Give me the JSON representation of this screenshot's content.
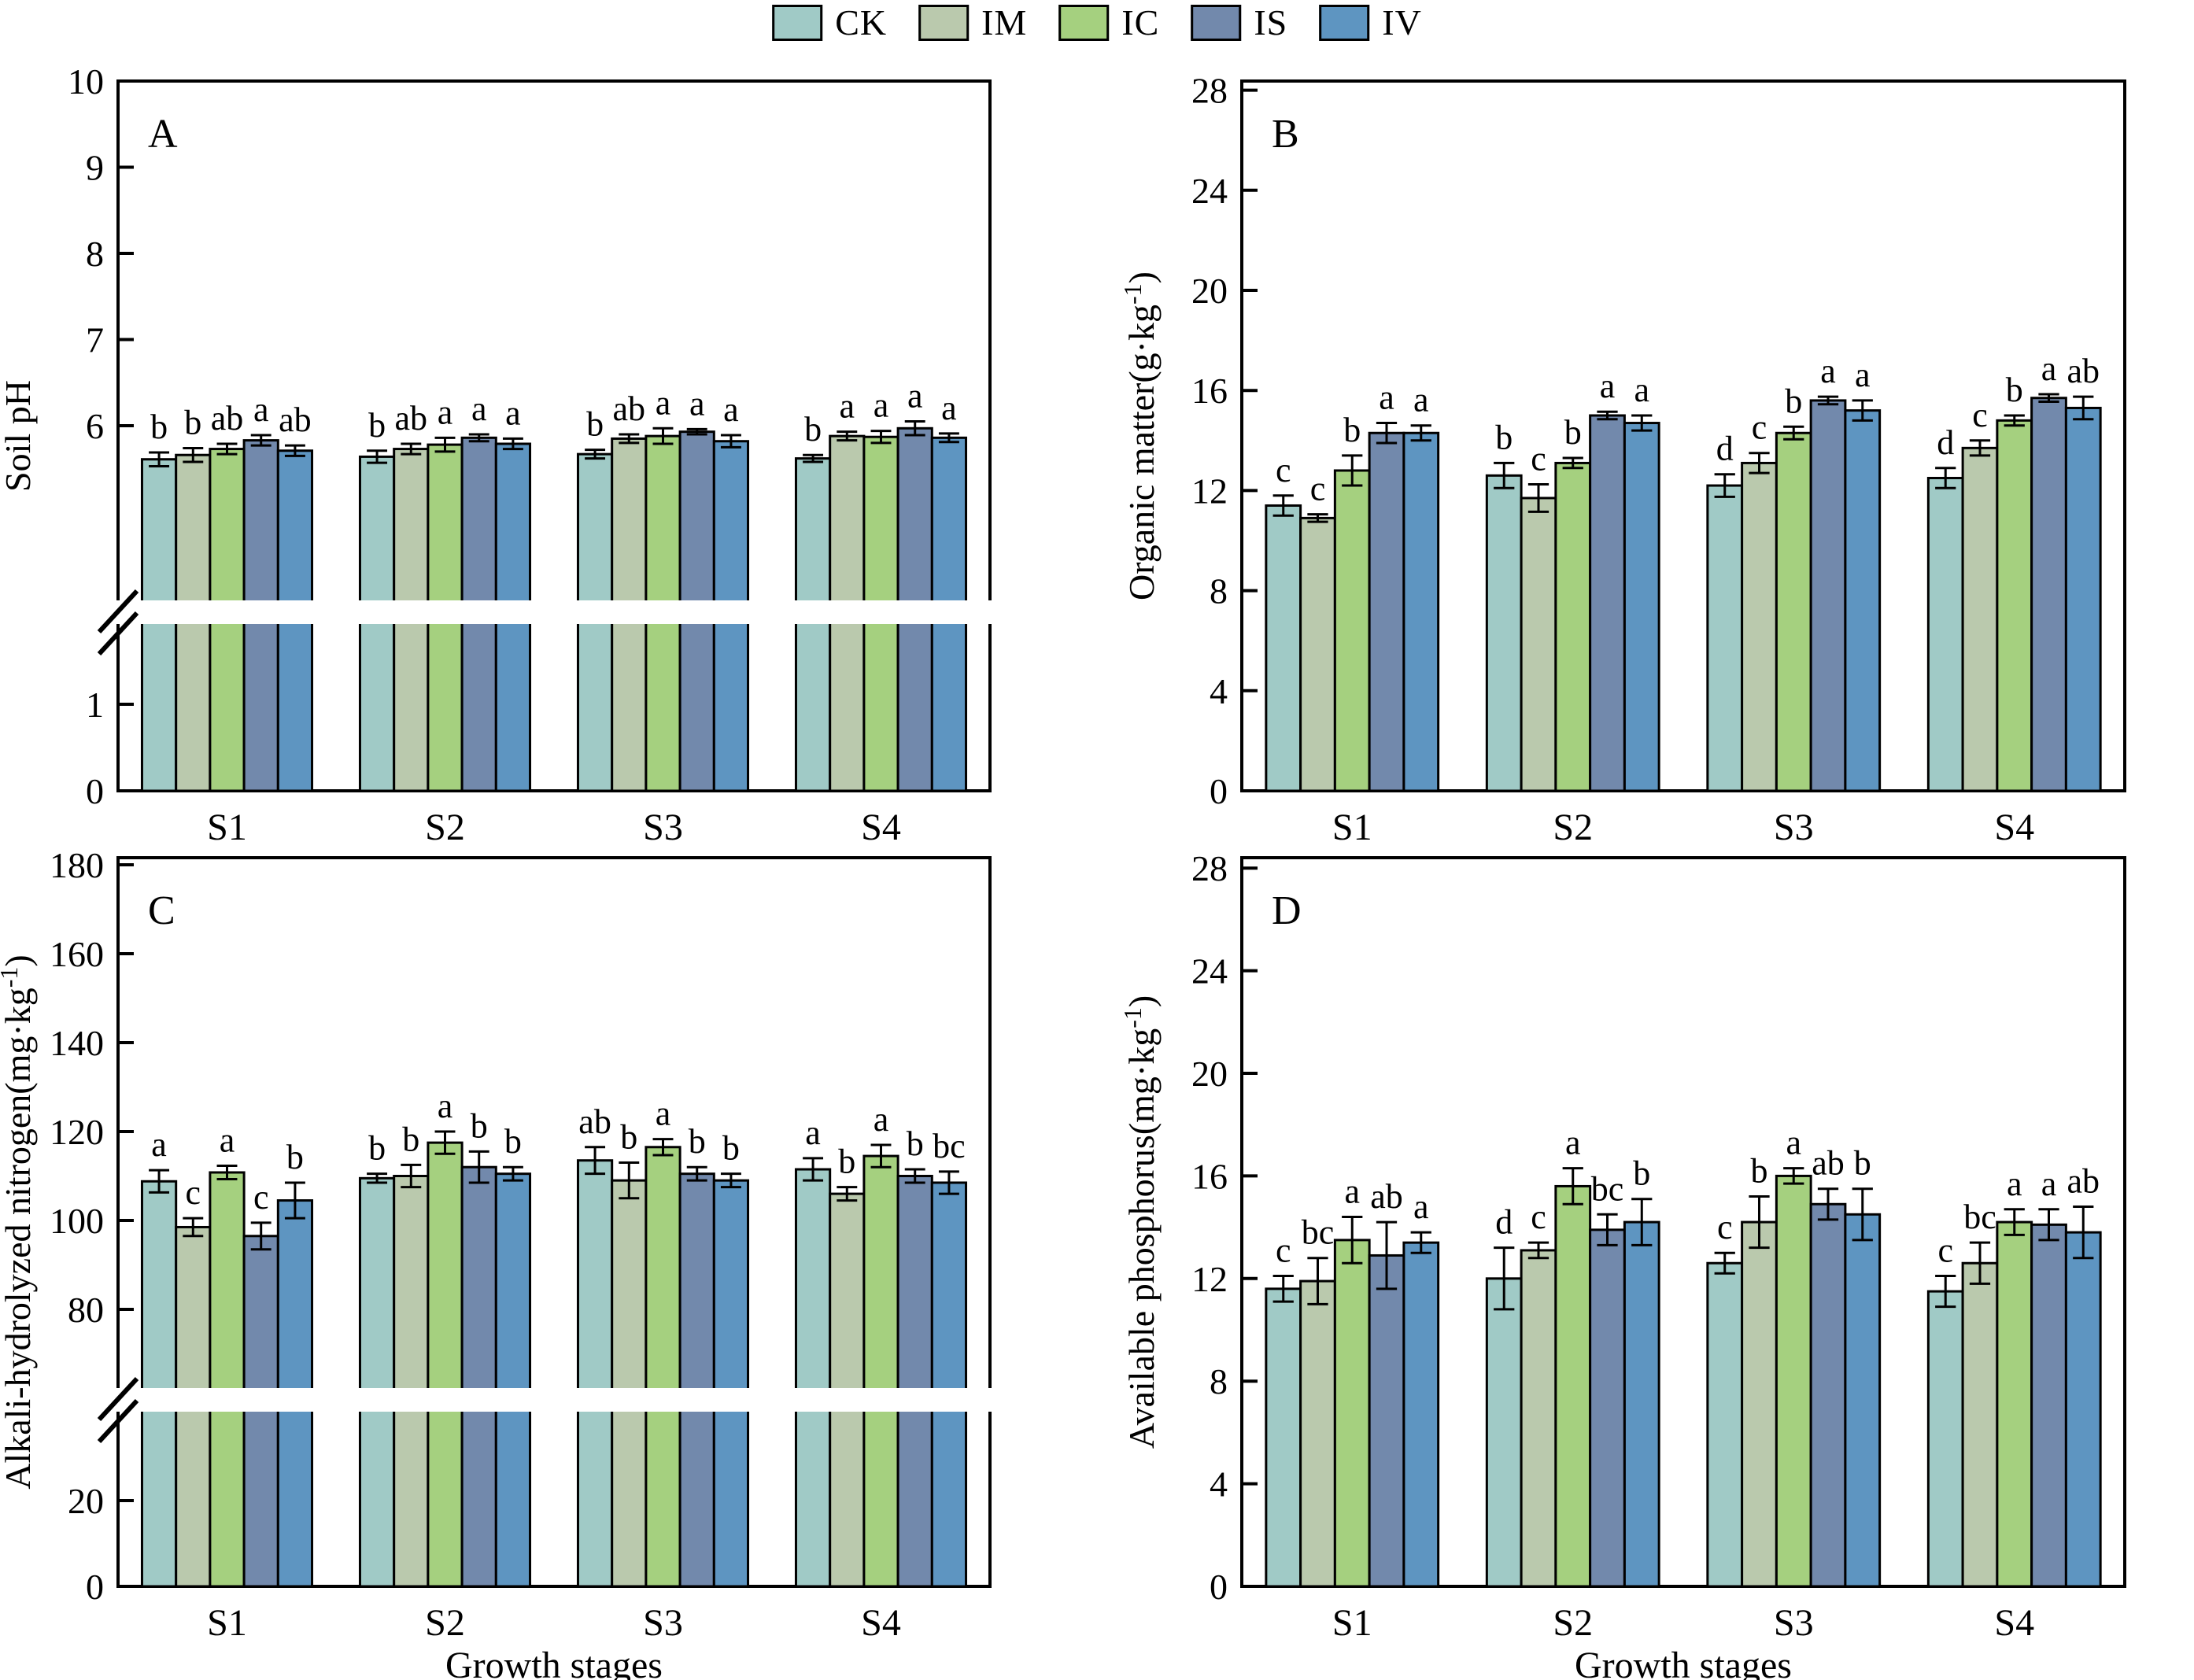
{
  "legend": {
    "items": [
      {
        "label": "CK",
        "color": "#a0cac6"
      },
      {
        "label": "IM",
        "color": "#bac9ad"
      },
      {
        "label": "IC",
        "color": "#a5d07f"
      },
      {
        "label": "IS",
        "color": "#7289ac"
      },
      {
        "label": "IV",
        "color": "#5e95c1"
      }
    ]
  },
  "x_axis": {
    "categories": [
      "S1",
      "S2",
      "S3",
      "S4"
    ],
    "label": "Growth stages"
  },
  "chart_data": [
    {
      "type": "bar",
      "panel": "A",
      "ylabel": "Soil pH",
      "ylim": [
        0,
        10
      ],
      "axis_break": true,
      "upper_ticks": [
        6,
        7,
        8,
        9,
        10
      ],
      "lower_ticks": [
        0,
        1
      ],
      "categories": [
        "S1",
        "S2",
        "S3",
        "S4"
      ],
      "series": [
        {
          "name": "CK",
          "values": [
            5.61,
            5.64,
            5.67,
            5.62
          ],
          "errors": [
            0.08,
            0.07,
            0.05,
            0.04
          ],
          "letters": [
            "b",
            "b",
            "b",
            "b"
          ]
        },
        {
          "name": "IM",
          "values": [
            5.66,
            5.73,
            5.85,
            5.88
          ],
          "errors": [
            0.08,
            0.06,
            0.05,
            0.05
          ],
          "letters": [
            "b",
            "ab",
            "ab",
            "a"
          ]
        },
        {
          "name": "IC",
          "values": [
            5.73,
            5.78,
            5.88,
            5.87
          ],
          "errors": [
            0.06,
            0.08,
            0.09,
            0.07
          ],
          "letters": [
            "ab",
            "a",
            "a",
            "a"
          ]
        },
        {
          "name": "IS",
          "values": [
            5.83,
            5.86,
            5.93,
            5.97
          ],
          "errors": [
            0.06,
            0.04,
            0.03,
            0.08
          ],
          "letters": [
            "a",
            "a",
            "a",
            "a"
          ]
        },
        {
          "name": "IV",
          "values": [
            5.71,
            5.79,
            5.82,
            5.86
          ],
          "errors": [
            0.06,
            0.06,
            0.07,
            0.05
          ],
          "letters": [
            "ab",
            "a",
            "a",
            "a"
          ]
        }
      ]
    },
    {
      "type": "bar",
      "panel": "B",
      "ylabel": "Organic matter(g·kg⁻¹)",
      "ylim": [
        0,
        28
      ],
      "axis_break": false,
      "yticks": [
        0,
        4,
        8,
        12,
        16,
        20,
        24,
        28
      ],
      "categories": [
        "S1",
        "S2",
        "S3",
        "S4"
      ],
      "series": [
        {
          "name": "CK",
          "values": [
            11.4,
            12.6,
            12.2,
            12.5
          ],
          "errors": [
            0.4,
            0.5,
            0.45,
            0.4
          ],
          "letters": [
            "c",
            "b",
            "d",
            "d"
          ]
        },
        {
          "name": "IM",
          "values": [
            10.9,
            11.7,
            13.1,
            13.7
          ],
          "errors": [
            0.15,
            0.55,
            0.4,
            0.3
          ],
          "letters": [
            "c",
            "c",
            "c",
            "c"
          ]
        },
        {
          "name": "IC",
          "values": [
            12.8,
            13.1,
            14.3,
            14.8
          ],
          "errors": [
            0.6,
            0.2,
            0.25,
            0.2
          ],
          "letters": [
            "b",
            "b",
            "b",
            "b"
          ]
        },
        {
          "name": "IS",
          "values": [
            14.3,
            15.0,
            15.6,
            15.7
          ],
          "errors": [
            0.4,
            0.15,
            0.15,
            0.15
          ],
          "letters": [
            "a",
            "a",
            "a",
            "a"
          ]
        },
        {
          "name": "IV",
          "values": [
            14.3,
            14.7,
            15.2,
            15.3
          ],
          "errors": [
            0.3,
            0.3,
            0.4,
            0.45
          ],
          "letters": [
            "a",
            "a",
            "a",
            "ab"
          ]
        }
      ]
    },
    {
      "type": "bar",
      "panel": "C",
      "ylabel": "Alkali-hydrolyzed nitrogen(mg·kg⁻¹)",
      "ylim": [
        0,
        180
      ],
      "axis_break": true,
      "upper_ticks": [
        80,
        100,
        120,
        140,
        160,
        180
      ],
      "lower_ticks": [
        0,
        20
      ],
      "categories": [
        "S1",
        "S2",
        "S3",
        "S4"
      ],
      "series": [
        {
          "name": "CK",
          "values": [
            108.8,
            109.5,
            113.5,
            111.5
          ],
          "errors": [
            2.5,
            1.0,
            3.0,
            2.5
          ],
          "letters": [
            "a",
            "b",
            "ab",
            "a"
          ]
        },
        {
          "name": "IM",
          "values": [
            98.5,
            110.0,
            109.0,
            106.0
          ],
          "errors": [
            2.0,
            2.5,
            4.0,
            1.5
          ],
          "letters": [
            "c",
            "b",
            "b",
            "b"
          ]
        },
        {
          "name": "IC",
          "values": [
            110.8,
            117.5,
            116.5,
            114.5
          ],
          "errors": [
            1.5,
            2.5,
            1.8,
            2.5
          ],
          "letters": [
            "a",
            "a",
            "a",
            "a"
          ]
        },
        {
          "name": "IS",
          "values": [
            96.5,
            112.0,
            110.5,
            110.0
          ],
          "errors": [
            3.0,
            3.5,
            1.5,
            1.5
          ],
          "letters": [
            "c",
            "b",
            "b",
            "b"
          ]
        },
        {
          "name": "IV",
          "values": [
            104.5,
            110.5,
            109.0,
            108.5
          ],
          "errors": [
            4.0,
            1.5,
            1.5,
            2.5
          ],
          "letters": [
            "b",
            "b",
            "b",
            "bc"
          ]
        }
      ]
    },
    {
      "type": "bar",
      "panel": "D",
      "ylabel": "Available phosphorus(mg·kg⁻¹)",
      "ylim": [
        0,
        28
      ],
      "axis_break": false,
      "yticks": [
        0,
        4,
        8,
        12,
        16,
        20,
        24,
        28
      ],
      "categories": [
        "S1",
        "S2",
        "S3",
        "S4"
      ],
      "series": [
        {
          "name": "CK",
          "values": [
            11.6,
            12.0,
            12.6,
            11.5
          ],
          "errors": [
            0.5,
            1.2,
            0.4,
            0.6
          ],
          "letters": [
            "c",
            "d",
            "c",
            "c"
          ]
        },
        {
          "name": "IM",
          "values": [
            11.9,
            13.1,
            14.2,
            12.6
          ],
          "errors": [
            0.9,
            0.3,
            1.0,
            0.8
          ],
          "letters": [
            "bc",
            "c",
            "b",
            "bc"
          ]
        },
        {
          "name": "IC",
          "values": [
            13.5,
            15.6,
            16.0,
            14.2
          ],
          "errors": [
            0.9,
            0.7,
            0.3,
            0.5
          ],
          "letters": [
            "a",
            "a",
            "a",
            "a"
          ]
        },
        {
          "name": "IS",
          "values": [
            12.9,
            13.9,
            14.9,
            14.1
          ],
          "errors": [
            1.3,
            0.6,
            0.6,
            0.6
          ],
          "letters": [
            "ab",
            "bc",
            "ab",
            "a"
          ]
        },
        {
          "name": "IV",
          "values": [
            13.4,
            14.2,
            14.5,
            13.8
          ],
          "errors": [
            0.4,
            0.9,
            1.0,
            1.0
          ],
          "letters": [
            "a",
            "b",
            "b",
            "ab"
          ]
        }
      ]
    }
  ]
}
